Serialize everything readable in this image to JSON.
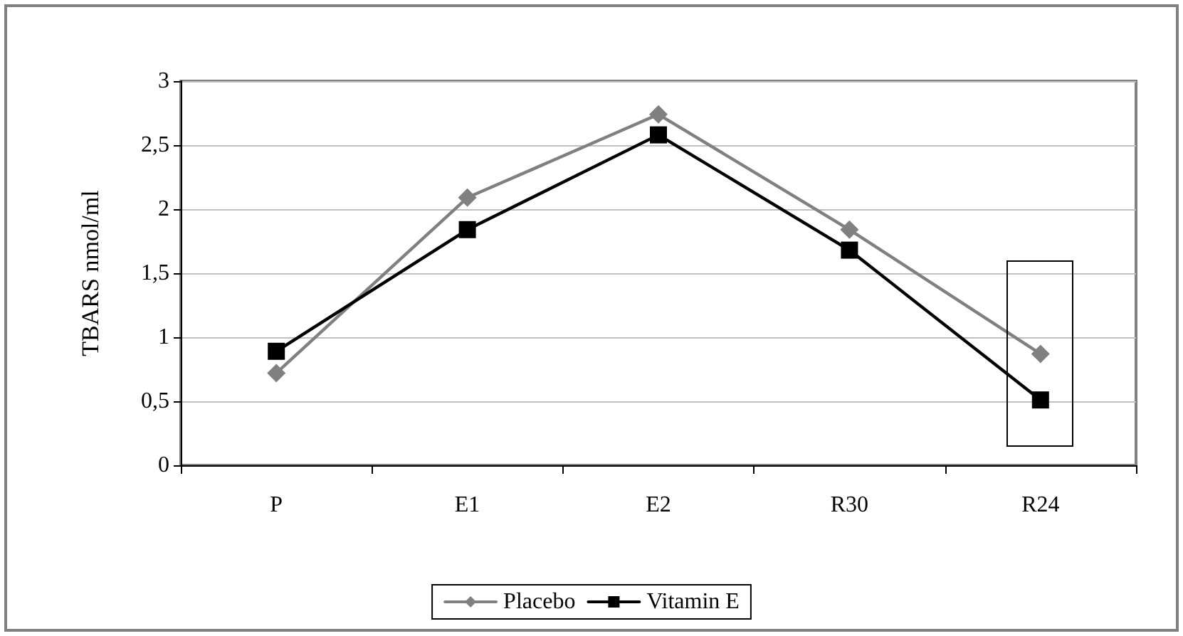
{
  "chart_data": {
    "type": "line",
    "ylabel": "TBARS nmol/ml",
    "categories": [
      "P",
      "E1",
      "E2",
      "R30",
      "R24"
    ],
    "series": [
      {
        "name": "Placebo",
        "color": "#808080",
        "marker": "diamond",
        "values": [
          0.72,
          2.09,
          2.74,
          1.84,
          0.87
        ]
      },
      {
        "name": "Vitamin E",
        "color": "#000000",
        "marker": "square",
        "values": [
          0.89,
          1.84,
          2.58,
          1.68,
          0.51
        ]
      }
    ],
    "ylim": [
      0,
      3
    ],
    "yticks": [
      {
        "value": 0,
        "label": "0"
      },
      {
        "value": 0.5,
        "label": "0,5"
      },
      {
        "value": 1,
        "label": "1"
      },
      {
        "value": 1.5,
        "label": "1,5"
      },
      {
        "value": 2,
        "label": "2"
      },
      {
        "value": 2.5,
        "label": "2,5"
      },
      {
        "value": 3,
        "label": "3"
      }
    ],
    "grid": "y",
    "legend": "bottom",
    "line_style": "solid"
  }
}
